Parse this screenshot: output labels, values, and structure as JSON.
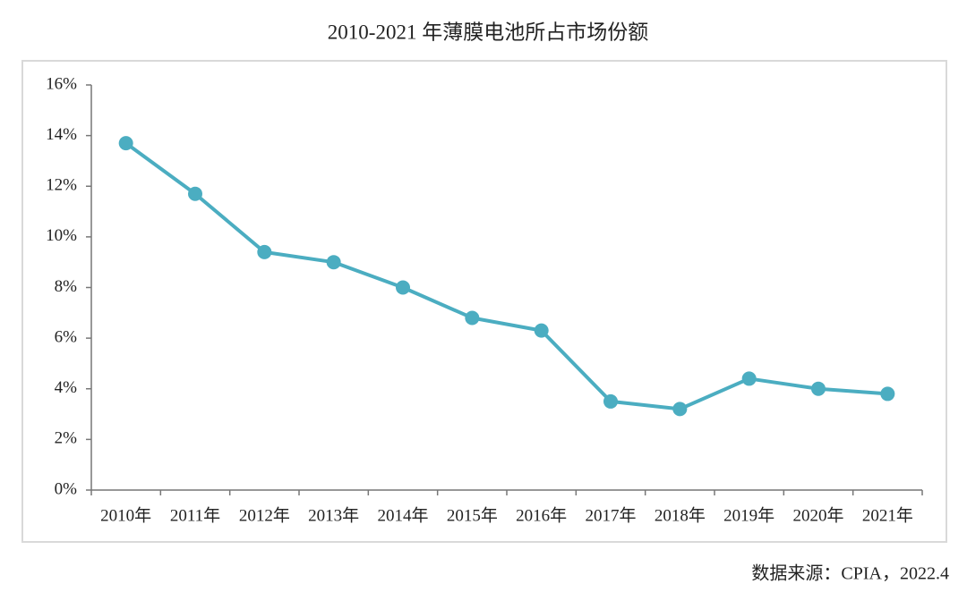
{
  "chart_data": {
    "type": "line",
    "title": "2010-2021 年薄膜电池所占市场份额",
    "categories": [
      "2010年",
      "2011年",
      "2012年",
      "2013年",
      "2014年",
      "2015年",
      "2016年",
      "2017年",
      "2018年",
      "2019年",
      "2020年",
      "2021年"
    ],
    "series": [
      {
        "color": "#4badc1",
        "values": [
          13.7,
          11.7,
          9.4,
          9.0,
          8.0,
          6.8,
          6.3,
          3.5,
          3.2,
          4.4,
          4.0,
          3.8
        ]
      }
    ],
    "ylim": [
      0,
      16
    ],
    "yticks": [
      {
        "value": 0,
        "label": "0%"
      },
      {
        "value": 2,
        "label": "2%"
      },
      {
        "value": 4,
        "label": "4%"
      },
      {
        "value": 6,
        "label": "6%"
      },
      {
        "value": 8,
        "label": "8%"
      },
      {
        "value": 10,
        "label": "10%"
      },
      {
        "value": 12,
        "label": "12%"
      },
      {
        "value": 14,
        "label": "14%"
      },
      {
        "value": 16,
        "label": "16%"
      }
    ],
    "grid": false,
    "source": "数据来源：CPIA，2022.4"
  }
}
